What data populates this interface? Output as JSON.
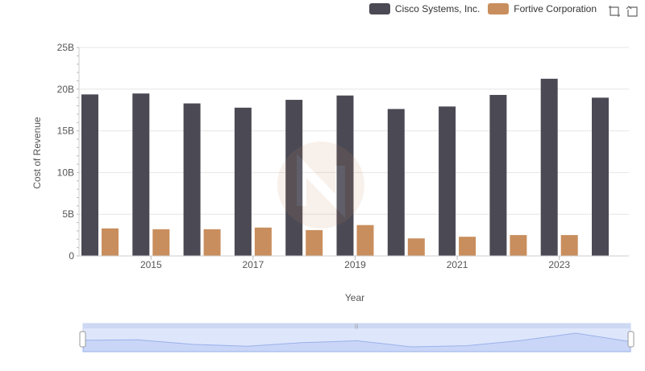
{
  "legend": [
    {
      "name": "Cisco Systems, Inc.",
      "color": "#4a4954"
    },
    {
      "name": "Fortive Corporation",
      "color": "#c98e5d"
    }
  ],
  "toolbar": {
    "icons": [
      "restore-icon",
      "zoom-reset-icon"
    ]
  },
  "chart_data": {
    "type": "bar",
    "xlabel": "Year",
    "ylabel": "Cost of Revenue",
    "ylim": [
      0,
      25000000000
    ],
    "yticks": [
      "0",
      "5B",
      "10B",
      "15B",
      "20B",
      "25B"
    ],
    "categories": [
      "2014",
      "2015",
      "2016",
      "2017",
      "2018",
      "2019",
      "2020",
      "2021",
      "2022",
      "2023",
      "2024"
    ],
    "xtick_labels": [
      "2015",
      "2017",
      "2019",
      "2021",
      "2023"
    ],
    "series": [
      {
        "name": "Cisco Systems, Inc.",
        "color": "#4a4954",
        "values": [
          19370000000,
          19480000000,
          18290000000,
          17780000000,
          18720000000,
          19240000000,
          17620000000,
          17920000000,
          19310000000,
          21250000000,
          18980000000
        ]
      },
      {
        "name": "Fortive Corporation",
        "color": "#c98e5d",
        "values": [
          3300000000,
          3200000000,
          3200000000,
          3400000000,
          3100000000,
          3700000000,
          2100000000,
          2300000000,
          2500000000,
          2500000000,
          null
        ]
      }
    ],
    "grid": true,
    "legend_position": "top-right"
  }
}
